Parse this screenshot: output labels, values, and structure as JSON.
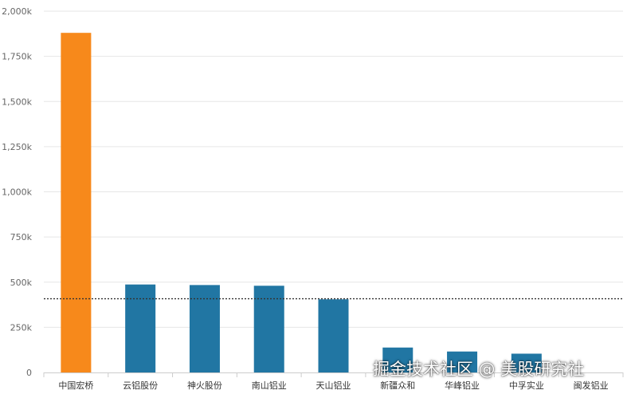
{
  "chart_data": {
    "type": "bar",
    "categories": [
      "中国宏桥",
      "云铝股份",
      "神火股份",
      "南山铝业",
      "天山铝业",
      "新疆众和",
      "华峰铝业",
      "中孚实业",
      "闽发铝业"
    ],
    "values": [
      1880,
      487,
      484,
      480,
      405,
      138,
      116,
      104,
      0
    ],
    "unit_suffix": "k",
    "ylim": [
      0,
      2000
    ],
    "yticks": [
      0,
      250,
      500,
      750,
      1000,
      1250,
      1500,
      1750,
      2000
    ],
    "ytick_labels": [
      "0",
      "250k",
      "500k",
      "750k",
      "1,000k",
      "1,250k",
      "1,500k",
      "1,750k",
      "2,000k"
    ],
    "reference_line": {
      "value": 408,
      "style": "dotted"
    },
    "highlight_index": 0,
    "grid": true,
    "title": "",
    "xlabel": "",
    "ylabel": ""
  },
  "colors": {
    "highlight": "#f7891b",
    "bar": "#2176a3",
    "grid": "#e6e6e6",
    "reference_line": "#333333"
  },
  "watermark": "掘金技术社区 @ 美股研究社"
}
